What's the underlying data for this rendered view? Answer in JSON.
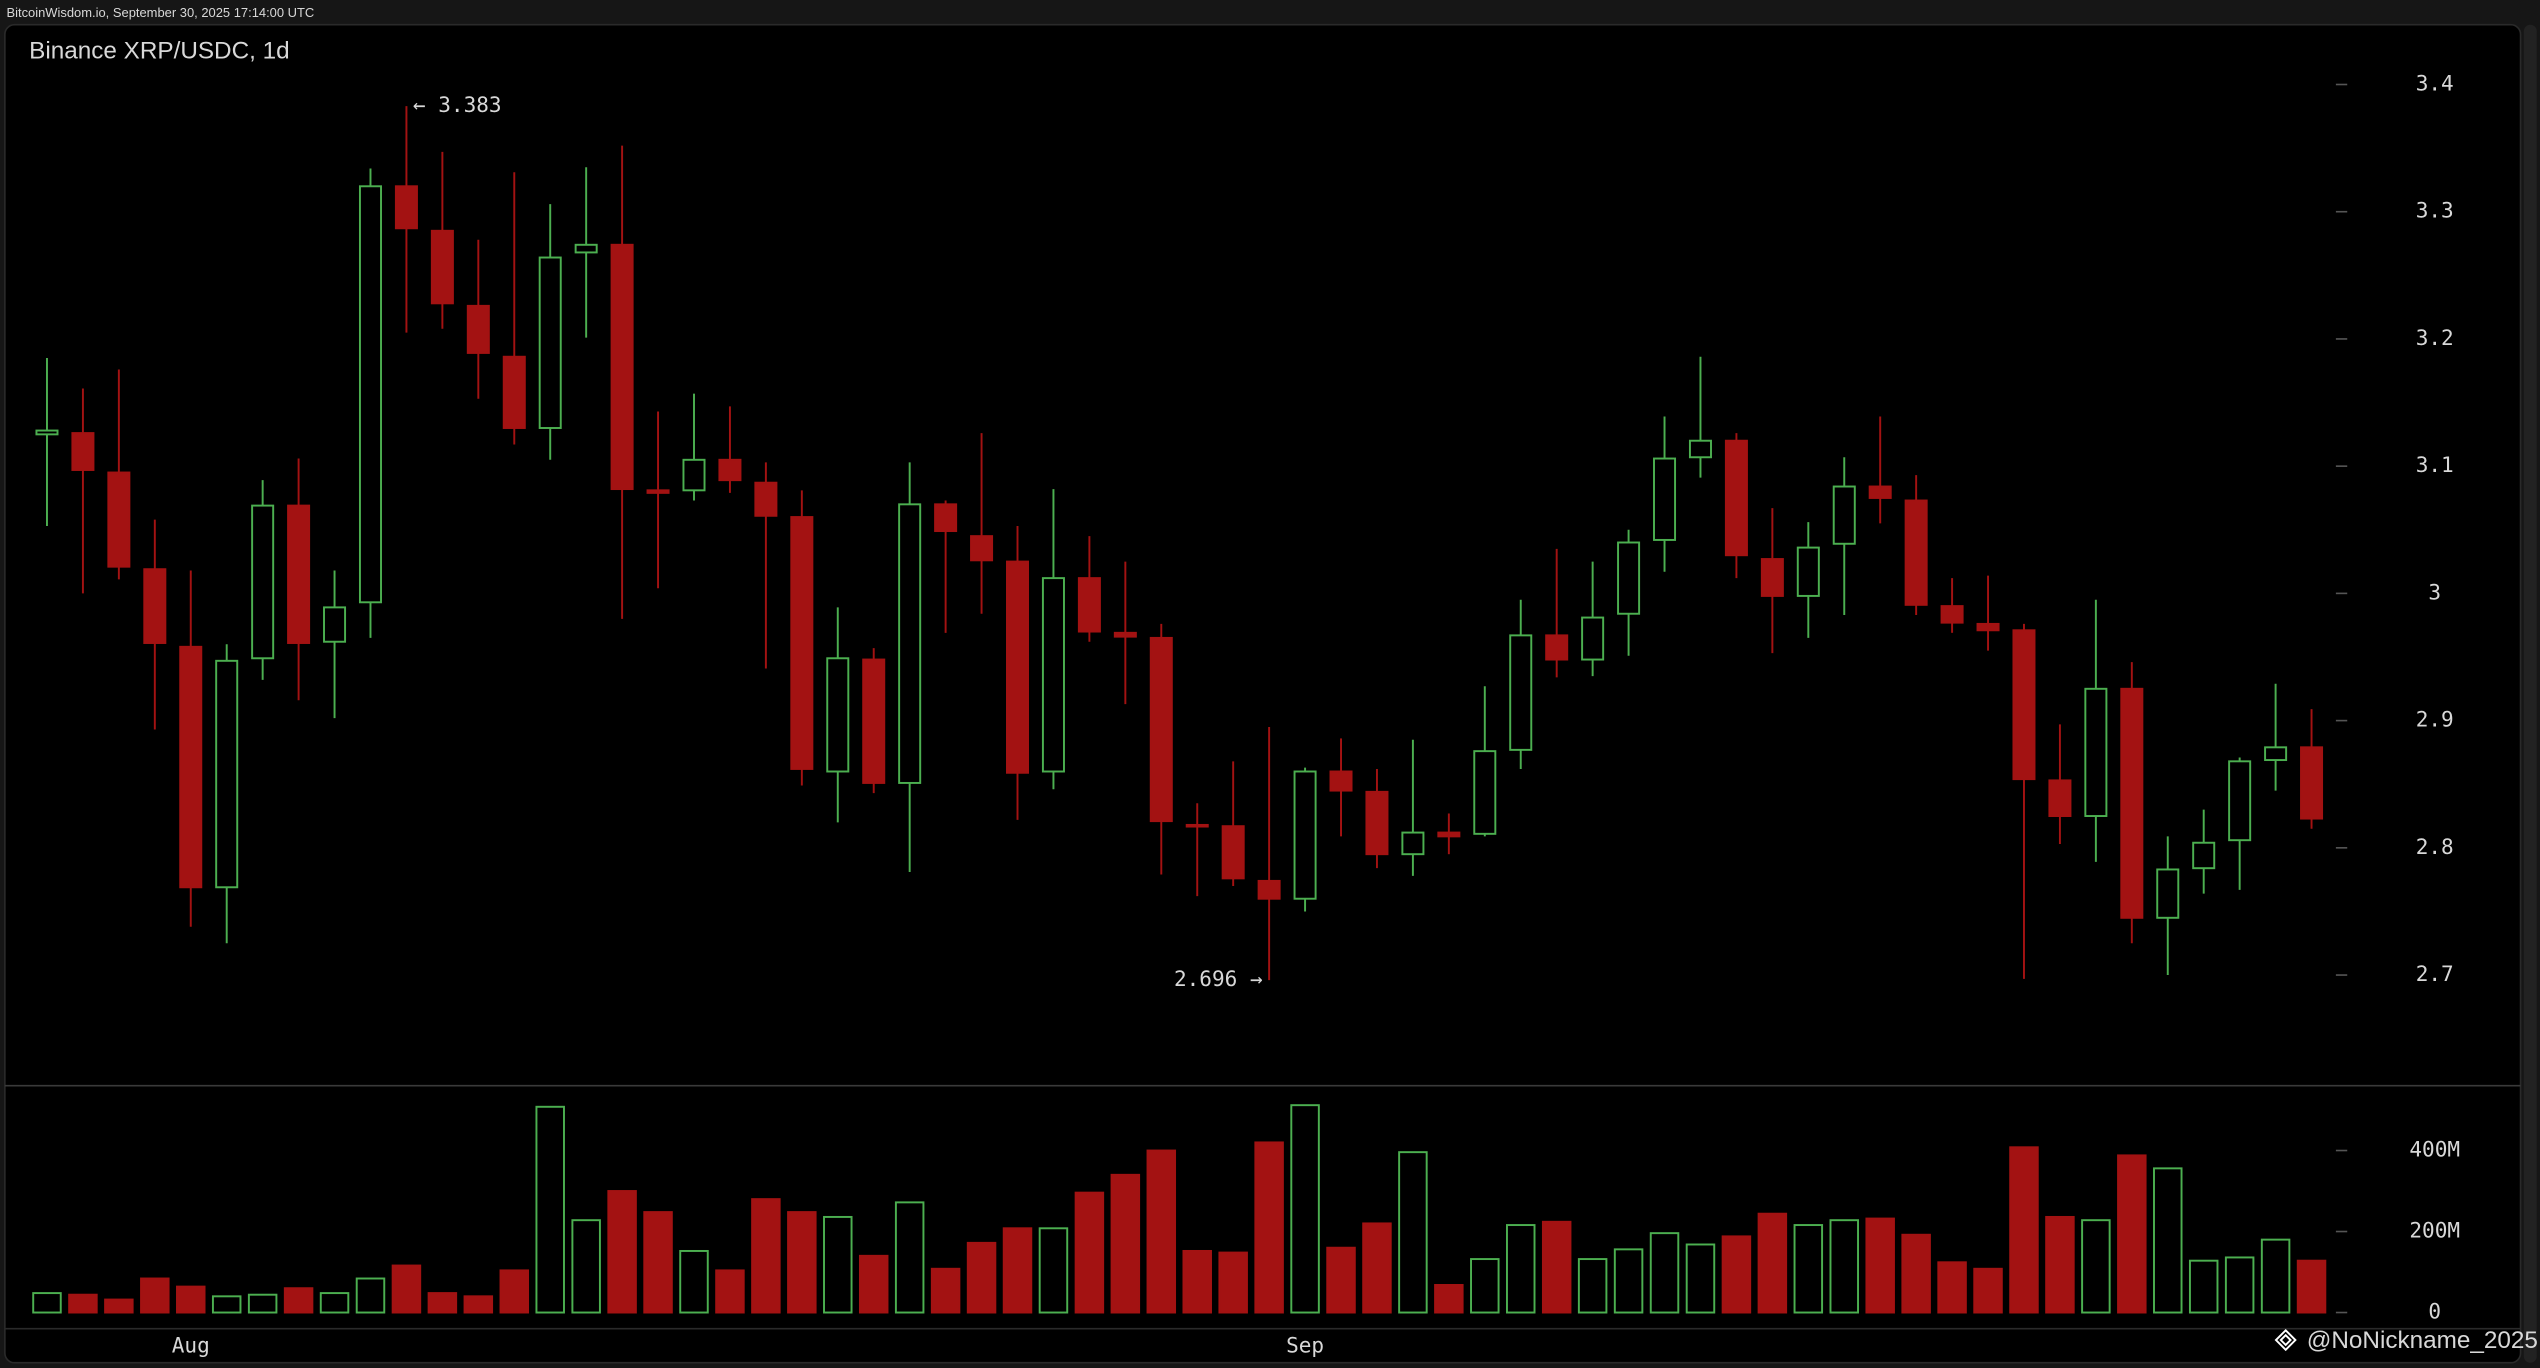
{
  "header": "BitcoinWisdom.io, September 30, 2025 17:14:00 UTC",
  "watermark": "@NoNickname_2025",
  "chart_data": [
    {
      "type": "candlestick",
      "title": "Binance XRP/USDC, 1d",
      "up_color": "#4caf50",
      "down_color": "#a31212",
      "open": [
        3.125,
        3.126,
        3.095,
        3.019,
        2.958,
        2.769,
        2.949,
        3.069,
        2.962,
        2.993,
        3.32,
        3.285,
        3.226,
        3.186,
        3.13,
        3.268,
        3.274,
        3.081,
        3.081,
        3.105,
        3.087,
        3.06,
        2.86,
        2.948,
        2.851,
        3.07,
        3.045,
        3.025,
        2.86,
        3.012,
        2.969,
        2.965,
        2.818,
        2.817,
        2.774,
        2.76,
        2.86,
        2.844,
        2.795,
        2.812,
        2.811,
        2.877,
        2.967,
        2.948,
        2.984,
        3.042,
        3.107,
        3.12,
        3.027,
        2.998,
        3.039,
        3.084,
        3.073,
        2.99,
        2.976,
        2.971,
        2.853,
        2.825,
        2.925,
        2.745,
        2.784,
        2.806,
        2.869,
        2.879
      ],
      "high": [
        3.185,
        3.161,
        3.176,
        3.058,
        3.018,
        2.96,
        3.089,
        3.106,
        3.018,
        3.334,
        3.383,
        3.347,
        3.278,
        3.331,
        3.306,
        3.335,
        3.352,
        3.143,
        3.157,
        3.147,
        3.103,
        3.081,
        2.989,
        2.957,
        3.103,
        3.073,
        3.126,
        3.053,
        3.082,
        3.045,
        3.025,
        2.976,
        2.835,
        2.868,
        2.895,
        2.863,
        2.886,
        2.862,
        2.885,
        2.827,
        2.927,
        2.995,
        3.035,
        3.025,
        3.05,
        3.139,
        3.186,
        3.126,
        3.067,
        3.056,
        3.107,
        3.139,
        3.093,
        3.012,
        3.014,
        2.976,
        2.897,
        2.995,
        2.946,
        2.809,
        2.83,
        2.871,
        2.929,
        2.909
      ],
      "low": [
        3.053,
        3.0,
        3.011,
        2.893,
        2.738,
        2.725,
        2.932,
        2.916,
        2.902,
        2.965,
        3.205,
        3.208,
        3.153,
        3.117,
        3.105,
        3.201,
        2.98,
        3.004,
        3.073,
        3.079,
        2.941,
        2.849,
        2.82,
        2.843,
        2.781,
        2.969,
        2.984,
        2.822,
        2.846,
        2.962,
        2.913,
        2.779,
        2.762,
        2.77,
        2.696,
        2.75,
        2.809,
        2.784,
        2.778,
        2.795,
        2.809,
        2.862,
        2.934,
        2.935,
        2.951,
        3.017,
        3.091,
        3.012,
        2.953,
        2.965,
        2.983,
        3.055,
        2.983,
        2.969,
        2.955,
        2.697,
        2.803,
        2.789,
        2.725,
        2.7,
        2.764,
        2.767,
        2.845,
        2.815
      ],
      "close": [
        3.128,
        3.097,
        3.021,
        2.961,
        2.769,
        2.947,
        3.069,
        2.961,
        2.989,
        3.32,
        3.287,
        3.228,
        3.189,
        3.13,
        3.264,
        3.274,
        3.082,
        3.079,
        3.105,
        3.089,
        3.061,
        2.862,
        2.949,
        2.851,
        3.07,
        3.049,
        3.026,
        2.859,
        3.012,
        2.97,
        2.966,
        2.821,
        2.817,
        2.776,
        2.76,
        2.86,
        2.845,
        2.795,
        2.812,
        2.809,
        2.876,
        2.967,
        2.948,
        2.981,
        3.04,
        3.106,
        3.12,
        3.03,
        2.998,
        3.036,
        3.084,
        3.075,
        2.991,
        2.977,
        2.971,
        2.854,
        2.825,
        2.925,
        2.745,
        2.783,
        2.804,
        2.868,
        2.879,
        2.823
      ],
      "annotations": [
        "← 3.383",
        "2.696 →"
      ],
      "ylim": [
        2.613,
        3.447
      ],
      "yticks": [
        2.7,
        2.8,
        2.9,
        3,
        3.1,
        3.2,
        3.3,
        3.4
      ]
    },
    {
      "type": "bar",
      "categories": [
        null,
        null,
        null,
        null,
        "Aug",
        null,
        null,
        null,
        null,
        null,
        null,
        null,
        null,
        null,
        null,
        null,
        null,
        null,
        null,
        null,
        null,
        null,
        null,
        null,
        null,
        null,
        null,
        null,
        null,
        null,
        null,
        null,
        null,
        null,
        null,
        "Sep",
        null,
        null,
        null,
        null,
        null,
        null,
        null,
        null,
        null,
        null,
        null,
        null,
        null,
        null,
        null,
        null,
        null,
        null,
        null,
        null,
        null,
        null,
        null,
        null,
        null,
        null,
        null,
        null
      ],
      "values": [
        48000000,
        44000000,
        32000000,
        84000000,
        64000000,
        40000000,
        44000000,
        60000000,
        48000000,
        84000000,
        116000000,
        48000000,
        40000000,
        104000000,
        508000000,
        228000000,
        300000000,
        248000000,
        152000000,
        104000000,
        280000000,
        248000000,
        236000000,
        140000000,
        272000000,
        108000000,
        172000000,
        208000000,
        208000000,
        296000000,
        340000000,
        400000000,
        152000000,
        148000000,
        420000000,
        512000000,
        160000000,
        220000000,
        396000000,
        68000000,
        132000000,
        216000000,
        224000000,
        132000000,
        156000000,
        196000000,
        168000000,
        188000000,
        244000000,
        216000000,
        228000000,
        232000000,
        192000000,
        124000000,
        108000000,
        408000000,
        236000000,
        228000000,
        388000000,
        356000000,
        128000000,
        136000000,
        180000000,
        128000000
      ],
      "ylim": [
        -40000000,
        560000000
      ],
      "yticks": [
        {
          "value": 0,
          "label": "0"
        },
        {
          "value": 200000000,
          "label": "200M"
        },
        {
          "value": 400000000,
          "label": "400M"
        }
      ]
    }
  ]
}
